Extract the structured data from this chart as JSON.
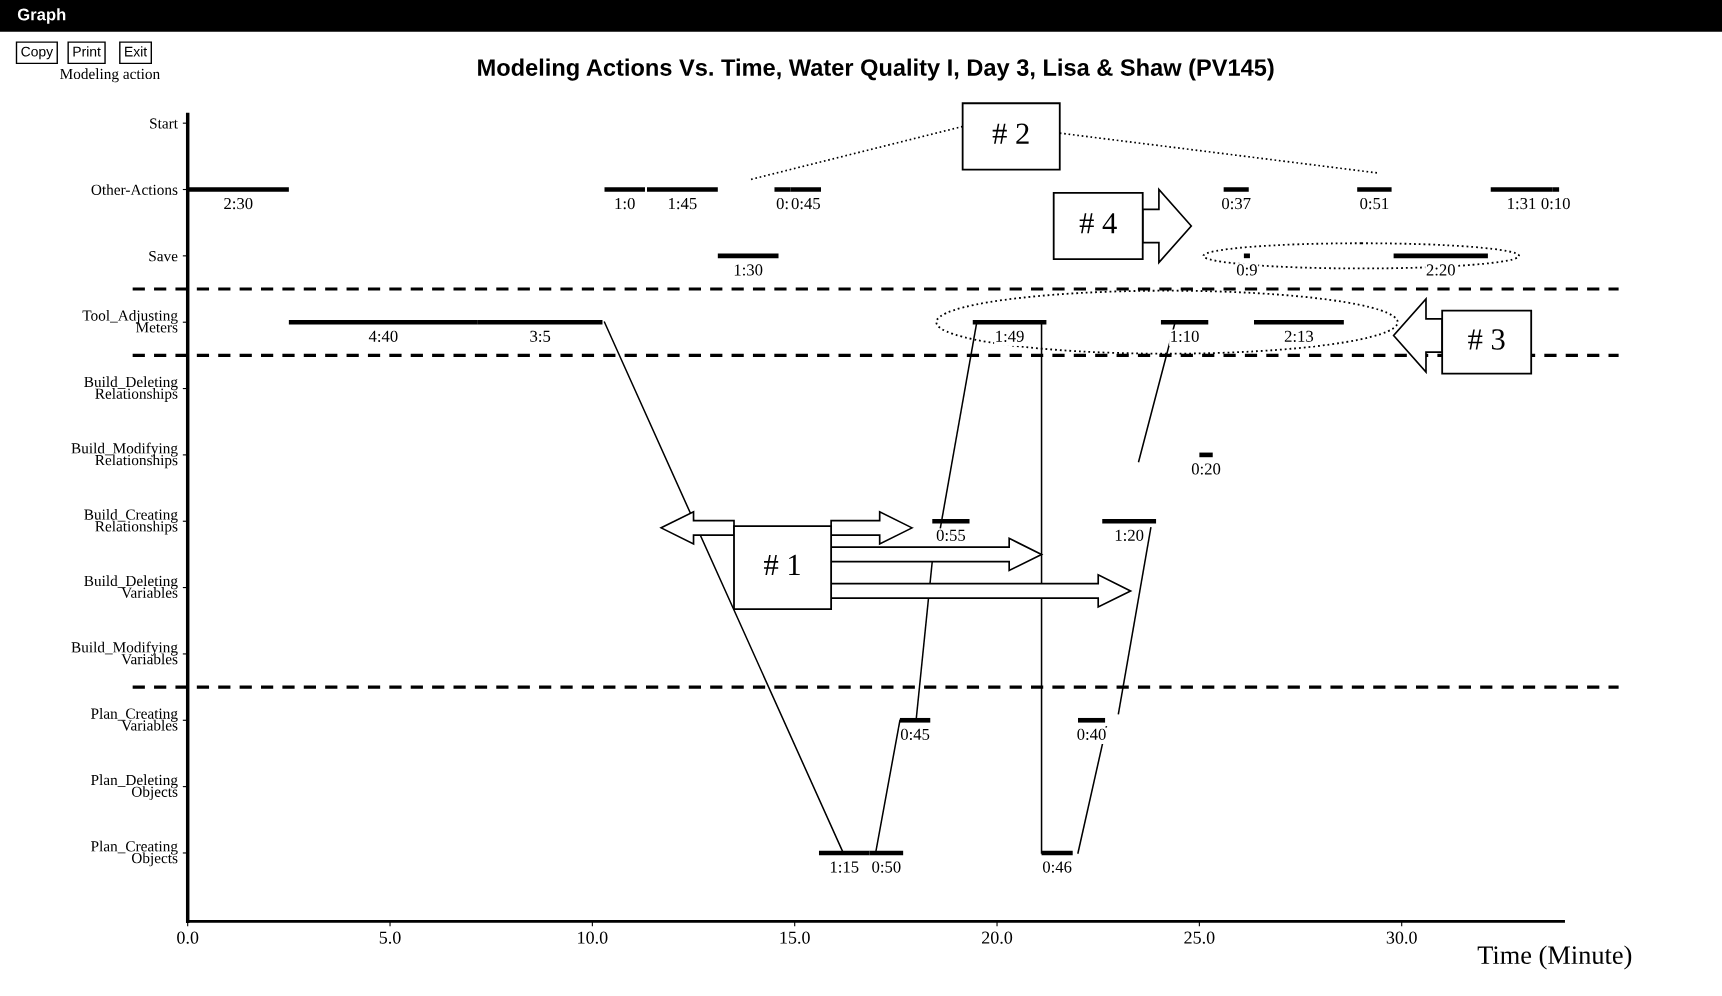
{
  "chart_data": {
    "type": "bar",
    "orientation": "horizontal",
    "title": "Modeling Actions Vs. Time, Water Quality I, Day 3, Lisa & Shaw (PV145)",
    "xlabel": "Time (Minute)",
    "ylabel": "Modeling action",
    "categories": [
      "Start",
      "Other-Actions",
      "Save",
      "Tool_Adjusting\nMeters",
      "Build_Deleting\nRelationships",
      "Build_Modifying\nRelationships",
      "Build_Creating\nRelationships",
      "Build_Deleting\nVariables",
      "Build_Modifying\nVariables",
      "Plan_Creating\nVariables",
      "Plan_Deleting\nObjects",
      "Plan_Creating\nObjects"
    ],
    "series": [
      {
        "color": "#000000",
        "base": [
          null,
          0,
          13.1,
          2.5,
          null,
          25.0,
          18.4,
          null,
          null,
          17.6,
          null,
          15.6
        ],
        "values": [
          null,
          2.5,
          1.5,
          4.67,
          null,
          0.33,
          0.92,
          null,
          null,
          0.75,
          null,
          1.25
        ],
        "value_labels": [
          null,
          "2:30",
          "1:30",
          "4:40",
          null,
          "0:20",
          "0:55",
          null,
          null,
          "0:45",
          null,
          "1:15"
        ]
      },
      {
        "color": "#000000",
        "base": [
          null,
          10.3,
          26.1,
          7.17,
          null,
          null,
          22.6,
          null,
          null,
          22.0,
          null,
          16.85
        ],
        "values": [
          null,
          1.0,
          0.15,
          3.08,
          null,
          null,
          1.33,
          null,
          null,
          0.67,
          null,
          0.83
        ],
        "value_labels": [
          null,
          "1:0",
          "0:9",
          "3:5",
          null,
          null,
          "1:20",
          null,
          null,
          "0:40",
          null,
          "0:50"
        ]
      },
      {
        "color": "#000000",
        "base": [
          null,
          11.35,
          29.8,
          19.4,
          null,
          null,
          null,
          null,
          null,
          null,
          null,
          21.1
        ],
        "values": [
          null,
          1.75,
          2.33,
          1.82,
          null,
          null,
          null,
          null,
          null,
          null,
          null,
          0.77
        ],
        "value_labels": [
          null,
          "1:45",
          "2:20",
          "1:49",
          null,
          null,
          null,
          null,
          null,
          null,
          null,
          "0:46"
        ]
      },
      {
        "color": "#000000",
        "base": [
          null,
          14.5,
          null,
          24.05,
          null,
          null,
          null,
          null,
          null,
          null,
          null,
          null
        ],
        "values": [
          null,
          0.4,
          null,
          1.17,
          null,
          null,
          null,
          null,
          null,
          null,
          null,
          null
        ],
        "value_labels": [
          null,
          "0:",
          null,
          "1:10",
          null,
          null,
          null,
          null,
          null,
          null,
          null,
          null
        ]
      },
      {
        "color": "#000000",
        "base": [
          null,
          14.9,
          null,
          26.35,
          null,
          null,
          null,
          null,
          null,
          null,
          null,
          null
        ],
        "values": [
          null,
          0.75,
          null,
          2.22,
          null,
          null,
          null,
          null,
          null,
          null,
          null,
          null
        ],
        "value_labels": [
          null,
          "0:45",
          null,
          "2:13",
          null,
          null,
          null,
          null,
          null,
          null,
          null,
          null
        ]
      },
      {
        "color": "#000000",
        "base": [
          null,
          25.6,
          null,
          null,
          null,
          null,
          null,
          null,
          null,
          null,
          null,
          null
        ],
        "values": [
          null,
          0.62,
          null,
          null,
          null,
          null,
          null,
          null,
          null,
          null,
          null,
          null
        ],
        "value_labels": [
          null,
          "0:37",
          null,
          null,
          null,
          null,
          null,
          null,
          null,
          null,
          null,
          null
        ]
      },
      {
        "color": "#000000",
        "base": [
          null,
          28.9,
          null,
          null,
          null,
          null,
          null,
          null,
          null,
          null,
          null,
          null
        ],
        "values": [
          null,
          0.85,
          null,
          null,
          null,
          null,
          null,
          null,
          null,
          null,
          null,
          null
        ],
        "value_labels": [
          null,
          "0:51",
          null,
          null,
          null,
          null,
          null,
          null,
          null,
          null,
          null,
          null
        ]
      },
      {
        "color": "#000000",
        "base": [
          null,
          32.2,
          null,
          null,
          null,
          null,
          null,
          null,
          null,
          null,
          null,
          null
        ],
        "values": [
          null,
          1.52,
          null,
          null,
          null,
          null,
          null,
          null,
          null,
          null,
          null,
          null
        ],
        "value_labels": [
          null,
          "1:31",
          null,
          null,
          null,
          null,
          null,
          null,
          null,
          null,
          null,
          null
        ]
      },
      {
        "color": "#000000",
        "base": [
          null,
          33.72,
          null,
          null,
          null,
          null,
          null,
          null,
          null,
          null,
          null,
          null
        ],
        "values": [
          null,
          0.17,
          null,
          null,
          null,
          null,
          null,
          null,
          null,
          null,
          null,
          null
        ],
        "value_labels": [
          null,
          "0:10",
          null,
          null,
          null,
          null,
          null,
          null,
          null,
          null,
          null,
          null
        ]
      }
    ],
    "xlim": [
      0,
      34
    ],
    "xticks": [
      {
        "value": 0,
        "label": "0.0"
      },
      {
        "value": 5,
        "label": "5.0"
      },
      {
        "value": 10,
        "label": "10.0"
      },
      {
        "value": 15,
        "label": "15.0"
      },
      {
        "value": 20,
        "label": "20.0"
      },
      {
        "value": 25,
        "label": "25.0"
      },
      {
        "value": 30,
        "label": "30.0"
      }
    ],
    "grid": false,
    "annotations": [
      "# 1",
      "# 2",
      "# 3",
      "# 4",
      "Graph",
      "Copy",
      "Print",
      "Exit"
    ]
  }
}
